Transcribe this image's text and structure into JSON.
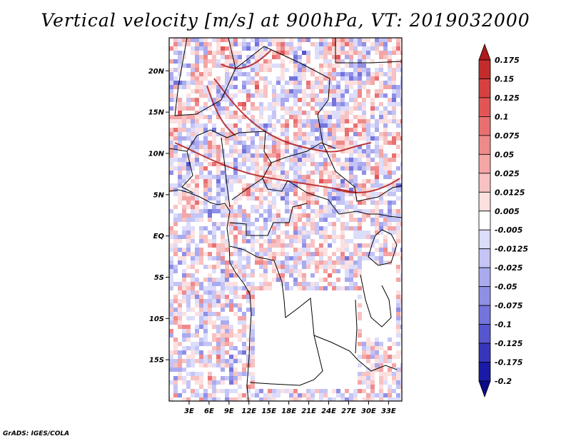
{
  "title": "Vertical velocity [m/s] at 900hPa, VT: 2019032000",
  "credit": "GrADS: IGES/COLA",
  "map": {
    "lon_range": [
      0,
      35
    ],
    "lat_range": [
      -20,
      24
    ],
    "lat_labels": [
      "20N",
      "15N",
      "10N",
      "5N",
      "EQ",
      "5S",
      "10S",
      "15S"
    ],
    "lon_labels": [
      "3E",
      "6E",
      "9E",
      "12E",
      "15E",
      "18E",
      "21E",
      "24E",
      "27E",
      "30E",
      "33E"
    ]
  },
  "colorbar": {
    "labels": [
      "0.175",
      "0.15",
      "0.125",
      "0.1",
      "0.075",
      "0.05",
      "0.025",
      "0.0125",
      "0.005",
      "-0.005",
      "-0.0125",
      "-0.025",
      "-0.05",
      "-0.075",
      "-0.1",
      "-0.125",
      "-0.175",
      "-0.2"
    ],
    "colors": [
      "#b01a1a",
      "#c42c2c",
      "#d64040",
      "#e35555",
      "#ea7070",
      "#ef8a8a",
      "#f4a6a6",
      "#f8c2c2",
      "#fce0e0",
      "#ffffff",
      "#dcdcfb",
      "#c4c4f5",
      "#aaaaef",
      "#8f8fe6",
      "#7474dc",
      "#5656cf",
      "#3636bd",
      "#1a1aa6",
      "#0a0a8a"
    ]
  }
}
